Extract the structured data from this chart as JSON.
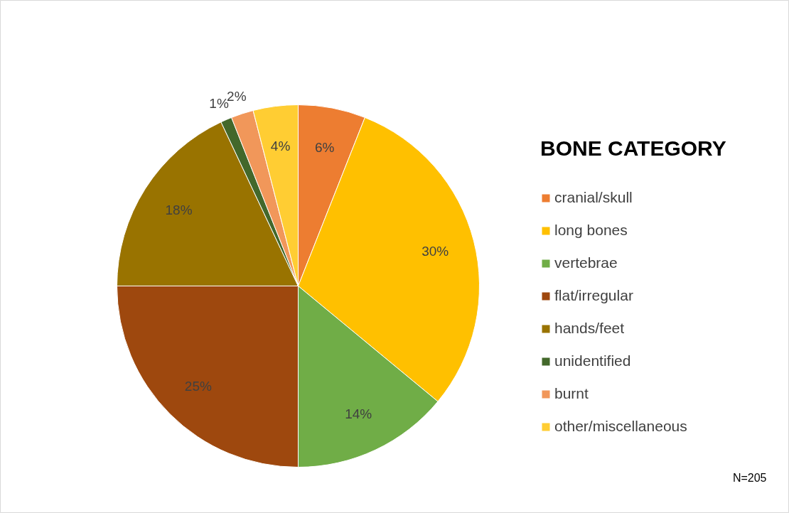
{
  "chart_data": {
    "type": "pie",
    "legend_title": "BONE CATEGORY",
    "categories": [
      "cranial/skull",
      "long bones",
      "vertebrae",
      "flat/irregular",
      "hands/feet",
      "unidentified",
      "burnt",
      "other/miscellaneous"
    ],
    "values": [
      6,
      30,
      14,
      25,
      18,
      1,
      2,
      4
    ],
    "colors": [
      "#ed7d31",
      "#ffc000",
      "#70ad47",
      "#9e480e",
      "#997300",
      "#43682b",
      "#f1975a",
      "#ffcd33"
    ],
    "value_labels": [
      "6%",
      "30%",
      "14%",
      "25%",
      "18%",
      "1%",
      "2%",
      "4%"
    ],
    "legend": "right",
    "annotations": [
      "N=205"
    ]
  }
}
